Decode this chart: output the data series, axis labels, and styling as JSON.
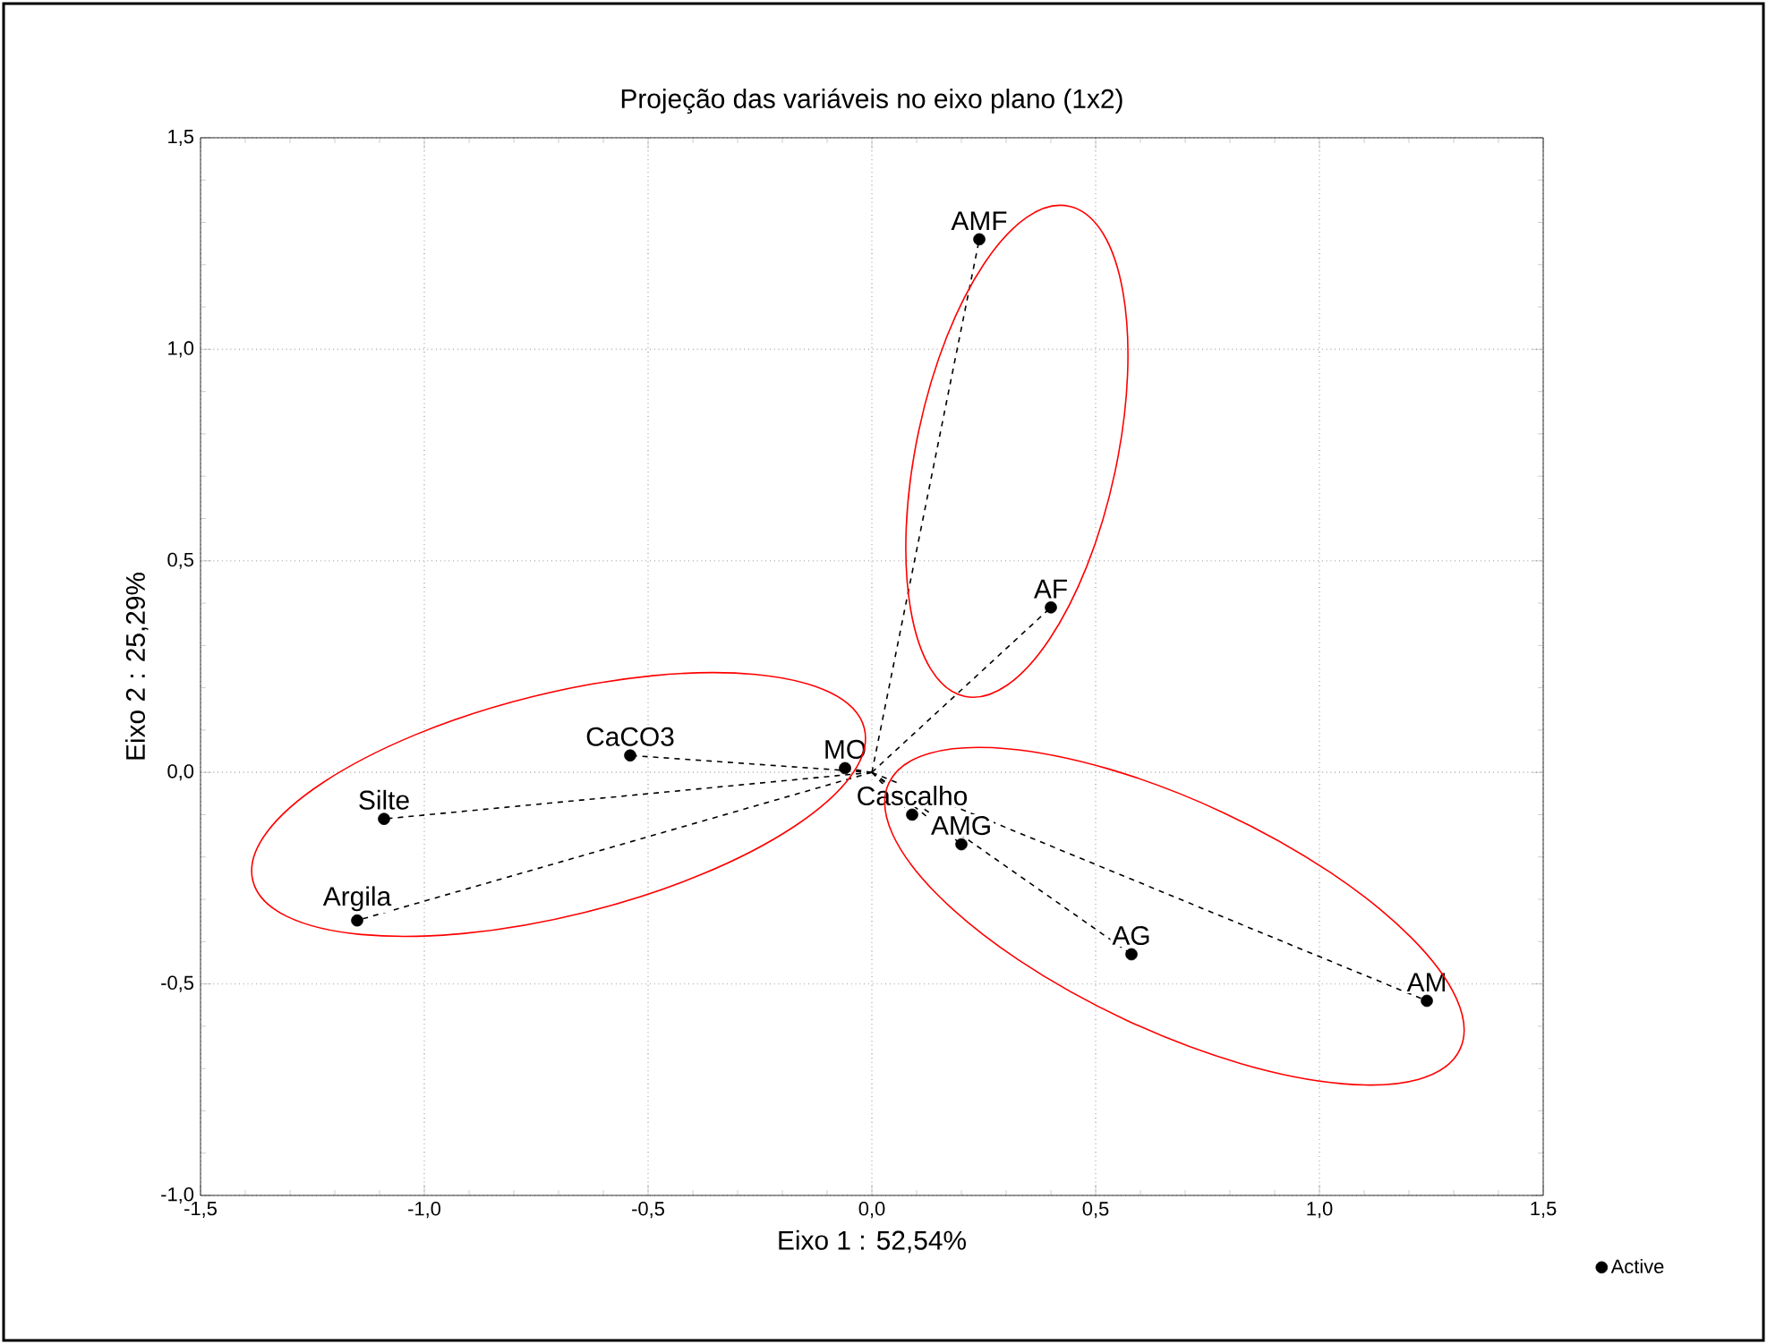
{
  "chart_data": {
    "type": "scatter",
    "title": "Projeção das variáveis no eixo plano (1x2)",
    "xlabel": "Eixo 1 : 52,54%",
    "ylabel": "Eixo 2 : 25,29%",
    "series": [
      {
        "name": "Active",
        "color": "#000000",
        "line_style": "dashed",
        "x": [
          0.24,
          0.4,
          -0.06,
          0.09,
          0.2,
          -0.54,
          -1.09,
          -1.15,
          0.58,
          1.24
        ],
        "values": [
          1.26,
          0.39,
          0.01,
          -0.1,
          -0.17,
          0.04,
          -0.11,
          -0.35,
          -0.43,
          -0.54
        ]
      }
    ],
    "annotations": [
      {
        "text": "AMF",
        "x": 0.24,
        "y": 1.26
      },
      {
        "text": "AF",
        "x": 0.4,
        "y": 0.39
      },
      {
        "text": "MO",
        "x": -0.06,
        "y": 0.01
      },
      {
        "text": "Cascalho",
        "x": 0.09,
        "y": -0.1
      },
      {
        "text": "AMG",
        "x": 0.2,
        "y": -0.17
      },
      {
        "text": "CaCO3",
        "x": -0.54,
        "y": 0.04
      },
      {
        "text": "Silte",
        "x": -1.09,
        "y": -0.11
      },
      {
        "text": "Argila",
        "x": -1.15,
        "y": -0.35
      },
      {
        "text": "AG",
        "x": 0.58,
        "y": -0.43
      },
      {
        "text": "AM",
        "x": 1.24,
        "y": -0.54
      }
    ],
    "xlim": [
      -1.5,
      1.5
    ],
    "ylim": [
      -1.0,
      1.5
    ],
    "xticks": [
      {
        "value": -1.5,
        "label": "-1,5"
      },
      {
        "value": -1.0,
        "label": "-1,0"
      },
      {
        "value": -0.5,
        "label": "-0,5"
      },
      {
        "value": 0.0,
        "label": "0,0"
      },
      {
        "value": 0.5,
        "label": "0,5"
      },
      {
        "value": 1.0,
        "label": "1,0"
      },
      {
        "value": 1.5,
        "label": "1,5"
      }
    ],
    "yticks": [
      {
        "value": -1.0,
        "label": "-1,0"
      },
      {
        "value": -0.5,
        "label": "-0,5"
      },
      {
        "value": 0.0,
        "label": "0,0"
      },
      {
        "value": 0.5,
        "label": "0,5"
      },
      {
        "value": 1.0,
        "label": "1,0"
      },
      {
        "value": 1.5,
        "label": "1,5"
      }
    ],
    "grid": true,
    "legend": "bottom right",
    "marker": "circle"
  }
}
